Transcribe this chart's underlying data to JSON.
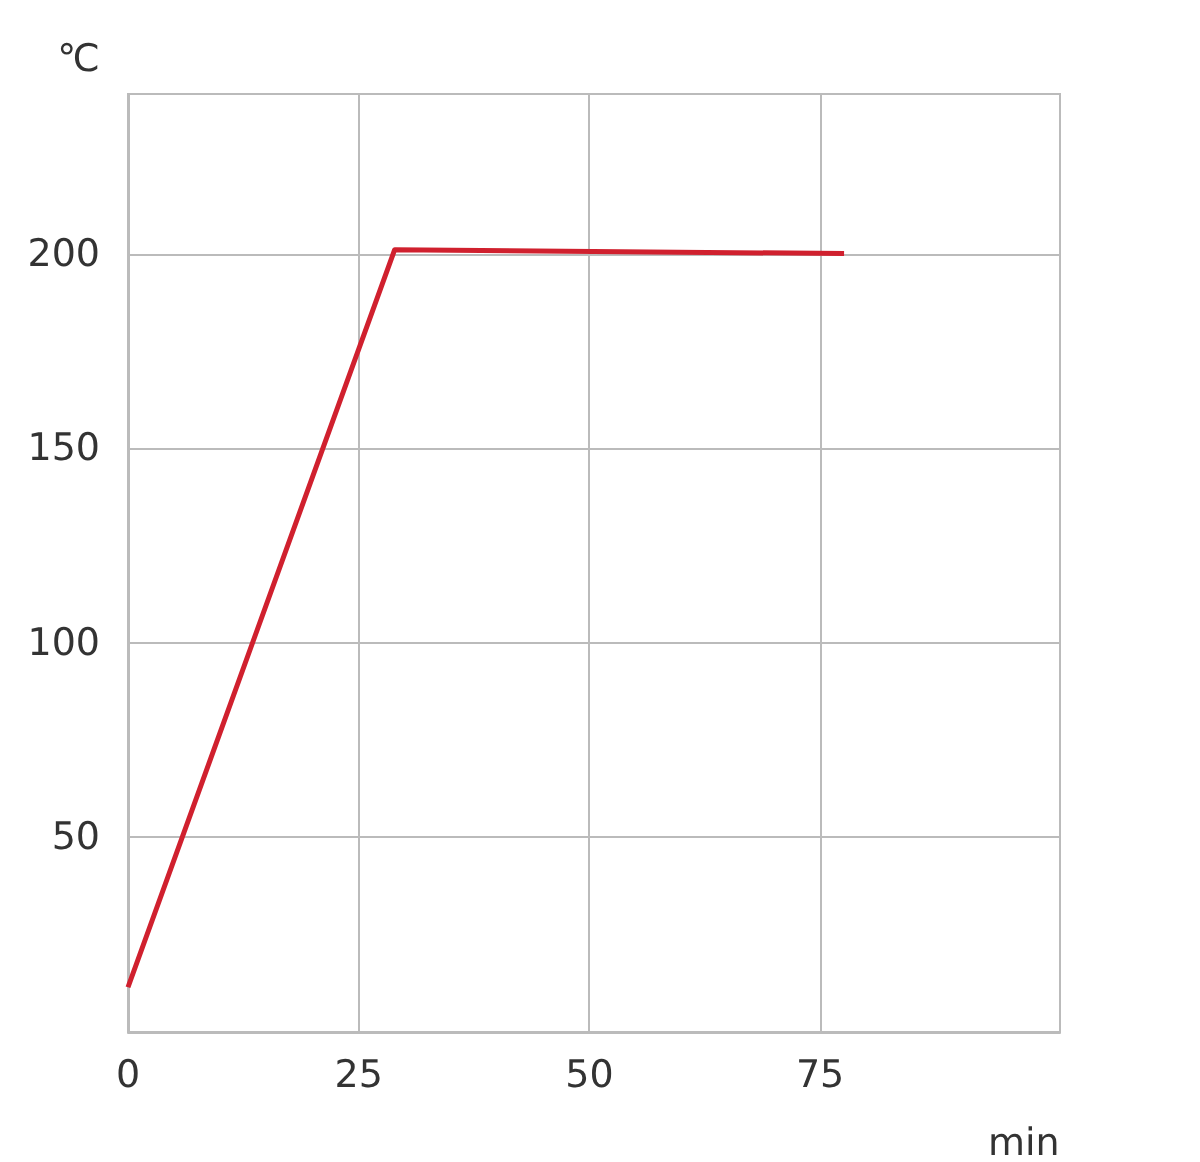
{
  "chart_data": {
    "type": "line",
    "xlabel": "min",
    "ylabel": "℃",
    "series": [
      {
        "color": "#d0202e",
        "x": [
          0,
          28.9,
          77.6
        ],
        "values": [
          11.5,
          201,
          200
        ]
      }
    ],
    "xlim": [
      0,
      101
    ],
    "xticks": [
      0,
      25,
      50,
      75
    ],
    "ylim": [
      0,
      241
    ],
    "yticks": [
      50,
      100,
      150,
      200
    ],
    "grid": true,
    "marker": "none",
    "line_style": "solid"
  }
}
